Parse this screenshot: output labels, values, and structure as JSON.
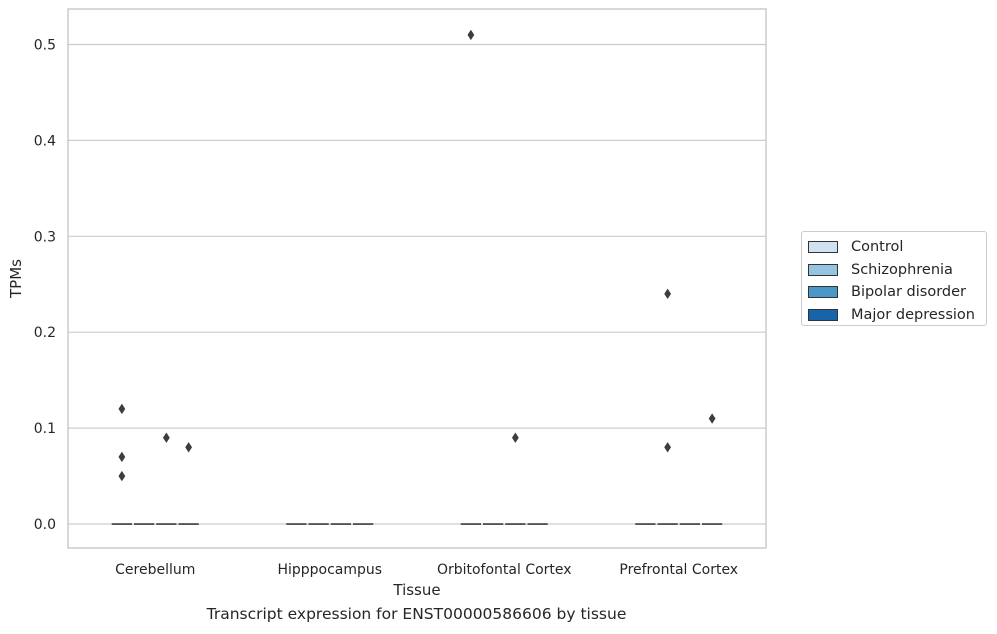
{
  "chart_data": {
    "type": "box",
    "title": "Transcript expression for ENST00000586606 by tissue",
    "xlabel": "Tissue",
    "ylabel": "TPMs",
    "categories": [
      "Cerebellum",
      "Hipppocampus",
      "Orbitofontal Cortex",
      "Prefrontal Cortex"
    ],
    "ylim": [
      -0.025,
      0.537
    ],
    "yticks": [
      0.0,
      0.1,
      0.2,
      0.3,
      0.4,
      0.5
    ],
    "ytick_labels": [
      "0.0",
      "0.1",
      "0.2",
      "0.3",
      "0.4",
      "0.5"
    ],
    "grid": true,
    "legend_position": "center-right outside",
    "series": [
      {
        "name": "Control",
        "color": "#d0e1f2",
        "median": [
          0,
          0,
          0,
          0
        ],
        "outliers": [
          [
            0.12,
            0.07,
            0.05
          ],
          [],
          [
            0.51
          ],
          []
        ]
      },
      {
        "name": "Schizophrenia",
        "color": "#94c4df",
        "median": [
          0,
          0,
          0,
          0
        ],
        "outliers": [
          [],
          [],
          [],
          [
            0.24,
            0.08
          ]
        ]
      },
      {
        "name": "Bipolar disorder",
        "color": "#4a98c9",
        "median": [
          0,
          0,
          0,
          0
        ],
        "outliers": [
          [
            0.09
          ],
          [],
          [
            0.09
          ],
          []
        ]
      },
      {
        "name": "Major depression",
        "color": "#1764ab",
        "median": [
          0,
          0,
          0,
          0
        ],
        "outliers": [
          [
            0.08
          ],
          [],
          [],
          [
            0.11
          ]
        ]
      }
    ]
  }
}
